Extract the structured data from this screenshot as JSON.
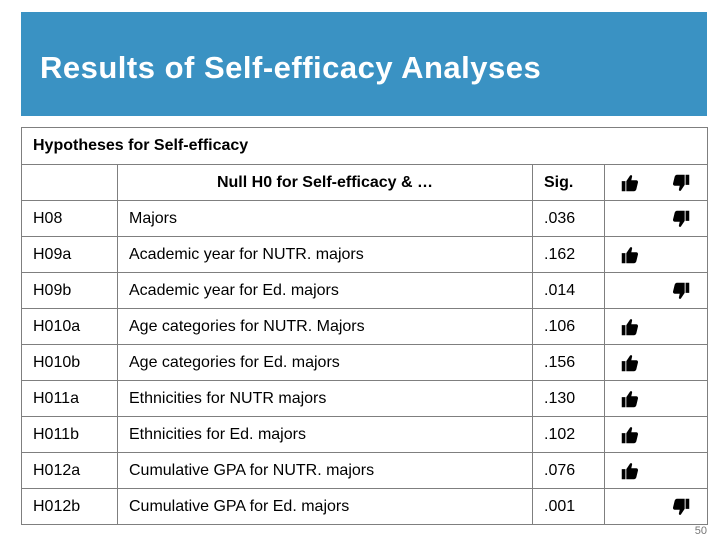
{
  "slide": {
    "title": "Results of Self-efficacy Analyses",
    "page_number": "50"
  },
  "colors": {
    "title_bar": "#3a92c3",
    "title_text": "#ffffff",
    "grid": "#7f7f7f"
  },
  "table": {
    "caption": "Hypotheses for Self-efficacy",
    "header": {
      "id": "",
      "null": "Null H0 for Self-efficacy & …",
      "sig": "Sig.",
      "up_icon": "thumbs-up-icon",
      "down_icon": "thumbs-down-icon"
    },
    "rows": [
      {
        "id": "H08",
        "null": "Majors",
        "sig": ".036",
        "result": "down"
      },
      {
        "id": "H09a",
        "null": "Academic year for NUTR. majors",
        "sig": ".162",
        "result": "up"
      },
      {
        "id": "H09b",
        "null": "Academic year for Ed. majors",
        "sig": ".014",
        "result": "down"
      },
      {
        "id": "H010a",
        "null": "Age categories for NUTR. Majors",
        "sig": ".106",
        "result": "up"
      },
      {
        "id": "H010b",
        "null": "Age categories for Ed. majors",
        "sig": ".156",
        "result": "up"
      },
      {
        "id": "H011a",
        "null": "Ethnicities for NUTR majors",
        "sig": ".130",
        "result": "up"
      },
      {
        "id": "H011b",
        "null": "Ethnicities for Ed. majors",
        "sig": ".102",
        "result": "up"
      },
      {
        "id": "H012a",
        "null": "Cumulative GPA for NUTR. majors",
        "sig": ".076",
        "result": "up"
      },
      {
        "id": "H012b",
        "null": "Cumulative GPA for Ed. majors",
        "sig": ".001",
        "result": "down"
      }
    ]
  }
}
